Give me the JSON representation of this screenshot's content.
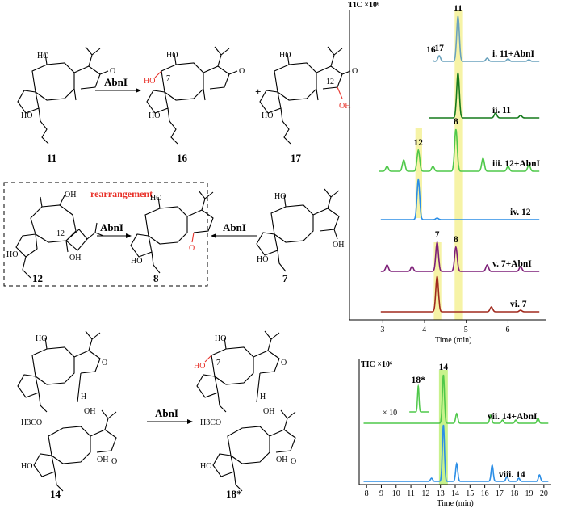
{
  "scheme": {
    "enzyme": "AbnI",
    "plus": "+",
    "rearrangement": "rearrangement",
    "compounds": {
      "c11": "11",
      "c16": "16",
      "c17": "17",
      "c12": "12",
      "c8": "8",
      "c7": "7",
      "c14": "14",
      "c18": "18*"
    },
    "atom_labels": {
      "c7": "7",
      "c12": "12",
      "h3co": "H3CO",
      "oh": "OH",
      "ho": "HO",
      "o": "O",
      "h": "H"
    }
  },
  "colors": {
    "highlight_yellow": "#f6f3a6",
    "highlight_green": "#c8f28c",
    "red": "#e8322a",
    "trace_i": "#6aa2bd",
    "trace_ii": "#157a1c",
    "trace_iii": "#4fc84a",
    "trace_iv": "#2b8ee6",
    "trace_v": "#7d1f78",
    "trace_vi": "#a02a1e",
    "trace_vii": "#4fc84a",
    "trace_viii": "#2b8ee6"
  },
  "chart_data": [
    {
      "type": "line",
      "title": "TIC ×10⁶",
      "xlabel": "Time (min)",
      "x_ticks": [
        "3",
        "4",
        "5",
        "6"
      ],
      "xlim": [
        2.2,
        6.9
      ],
      "series": [
        {
          "name": "i. 11+AbnI",
          "peaks": [
            {
              "t": 4.15,
              "label": "16"
            },
            {
              "t": 4.35,
              "label": "17"
            },
            {
              "t": 4.8,
              "label": "11"
            }
          ]
        },
        {
          "name": "ii. 11",
          "peaks": [
            {
              "t": 4.8
            }
          ]
        },
        {
          "name": "iii. 12+AbnI",
          "peaks": [
            {
              "t": 3.85,
              "label": "12"
            },
            {
              "t": 4.75,
              "label": "8"
            }
          ]
        },
        {
          "name": "iv. 12",
          "peaks": [
            {
              "t": 3.85
            }
          ]
        },
        {
          "name": "v. 7+AbnI",
          "peaks": [
            {
              "t": 4.3,
              "label": "7"
            },
            {
              "t": 4.75,
              "label": "8"
            }
          ]
        },
        {
          "name": "vi. 7",
          "peaks": [
            {
              "t": 4.3
            }
          ]
        }
      ]
    },
    {
      "type": "line",
      "title": "TIC ×10⁶",
      "xlabel": "Time (min)",
      "x_ticks": [
        "8",
        "9",
        "10",
        "11",
        "12",
        "13",
        "14",
        "15",
        "16",
        "17",
        "18",
        "19",
        "20"
      ],
      "xlim": [
        7.5,
        20.5
      ],
      "annotation": "× 10",
      "series": [
        {
          "name": "vii. 14+AbnI",
          "peaks": [
            {
              "t": 11.5,
              "label": "18*"
            },
            {
              "t": 13.2,
              "label": "14"
            }
          ]
        },
        {
          "name": "viii. 14",
          "peaks": [
            {
              "t": 13.2
            }
          ]
        }
      ]
    }
  ]
}
